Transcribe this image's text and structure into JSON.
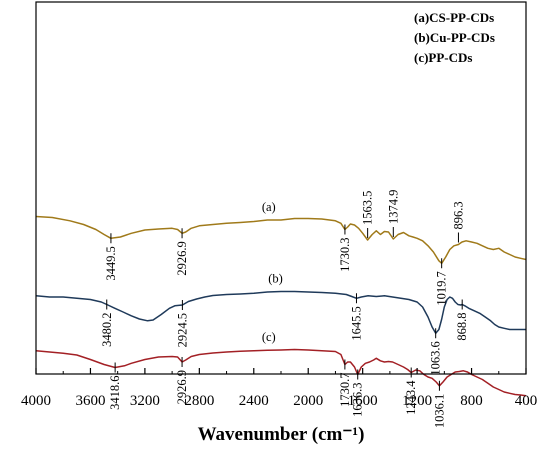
{
  "chart_data": {
    "type": "line",
    "xlabel": "Wavenumber (cm⁻¹)",
    "xlim": [
      4000,
      400
    ],
    "x_ticks": [
      "4000",
      "3600",
      "3200",
      "2800",
      "2400",
      "2000",
      "1600",
      "1200",
      "800",
      "400"
    ],
    "legend": [
      "(a)CS-PP-CDs",
      "(b)Cu-PP-CDs",
      "(c)PP-CDs"
    ],
    "series": [
      {
        "name": "(a)CS-PP-CDs",
        "label": "(a)",
        "color": "#a07a1a",
        "label_at": 2290,
        "points": [
          [
            4000,
            0.858
          ],
          [
            3880,
            0.862
          ],
          [
            3750,
            0.875
          ],
          [
            3650,
            0.89
          ],
          [
            3560,
            0.91
          ],
          [
            3500,
            0.93
          ],
          [
            3449.5,
            0.945
          ],
          [
            3380,
            0.94
          ],
          [
            3300,
            0.925
          ],
          [
            3200,
            0.912
          ],
          [
            3100,
            0.908
          ],
          [
            3000,
            0.905
          ],
          [
            2960,
            0.91
          ],
          [
            2926.9,
            0.925
          ],
          [
            2900,
            0.92
          ],
          [
            2860,
            0.905
          ],
          [
            2800,
            0.895
          ],
          [
            2700,
            0.89
          ],
          [
            2600,
            0.885
          ],
          [
            2500,
            0.882
          ],
          [
            2400,
            0.878
          ],
          [
            2300,
            0.872
          ],
          [
            2200,
            0.872
          ],
          [
            2100,
            0.866
          ],
          [
            2000,
            0.866
          ],
          [
            1900,
            0.868
          ],
          [
            1800,
            0.875
          ],
          [
            1760,
            0.885
          ],
          [
            1730.3,
            0.91
          ],
          [
            1710,
            0.9
          ],
          [
            1690,
            0.888
          ],
          [
            1660,
            0.892
          ],
          [
            1630,
            0.905
          ],
          [
            1600,
            0.925
          ],
          [
            1563.5,
            0.952
          ],
          [
            1530,
            0.93
          ],
          [
            1500,
            0.915
          ],
          [
            1470,
            0.93
          ],
          [
            1440,
            0.918
          ],
          [
            1410,
            0.92
          ],
          [
            1374.9,
            0.948
          ],
          [
            1340,
            0.93
          ],
          [
            1300,
            0.922
          ],
          [
            1260,
            0.935
          ],
          [
            1230,
            0.94
          ],
          [
            1200,
            0.945
          ],
          [
            1160,
            0.955
          ],
          [
            1120,
            0.975
          ],
          [
            1080,
            1.0
          ],
          [
            1040,
            1.035
          ],
          [
            1019.7,
            1.045
          ],
          [
            990,
            1.02
          ],
          [
            960,
            0.99
          ],
          [
            930,
            0.975
          ],
          [
            896.3,
            0.97
          ],
          [
            870,
            0.96
          ],
          [
            840,
            0.955
          ],
          [
            800,
            0.96
          ],
          [
            760,
            0.965
          ],
          [
            720,
            0.975
          ],
          [
            680,
            0.985
          ],
          [
            640,
            0.99
          ],
          [
            600,
            0.985
          ],
          [
            560,
            1.0
          ],
          [
            520,
            1.01
          ],
          [
            480,
            1.02
          ],
          [
            440,
            1.025
          ],
          [
            400,
            1.03
          ]
        ]
      },
      {
        "name": "(b)Cu-PP-CDs",
        "label": "(b)",
        "color": "#1f3a5a",
        "label_at": 2240,
        "points": [
          [
            4000,
            1.175
          ],
          [
            3900,
            1.18
          ],
          [
            3800,
            1.18
          ],
          [
            3700,
            1.185
          ],
          [
            3600,
            1.19
          ],
          [
            3520,
            1.2
          ],
          [
            3480.2,
            1.21
          ],
          [
            3420,
            1.225
          ],
          [
            3360,
            1.24
          ],
          [
            3300,
            1.255
          ],
          [
            3240,
            1.268
          ],
          [
            3180,
            1.275
          ],
          [
            3140,
            1.272
          ],
          [
            3080,
            1.25
          ],
          [
            3020,
            1.225
          ],
          [
            2980,
            1.215
          ],
          [
            2924.5,
            1.212
          ],
          [
            2880,
            1.198
          ],
          [
            2820,
            1.188
          ],
          [
            2760,
            1.18
          ],
          [
            2700,
            1.174
          ],
          [
            2600,
            1.17
          ],
          [
            2500,
            1.168
          ],
          [
            2400,
            1.165
          ],
          [
            2300,
            1.16
          ],
          [
            2200,
            1.158
          ],
          [
            2100,
            1.158
          ],
          [
            2000,
            1.16
          ],
          [
            1900,
            1.162
          ],
          [
            1800,
            1.165
          ],
          [
            1720,
            1.17
          ],
          [
            1680,
            1.178
          ],
          [
            1645.5,
            1.185
          ],
          [
            1610,
            1.18
          ],
          [
            1560,
            1.175
          ],
          [
            1500,
            1.178
          ],
          [
            1440,
            1.175
          ],
          [
            1380,
            1.18
          ],
          [
            1320,
            1.185
          ],
          [
            1260,
            1.19
          ],
          [
            1200,
            1.2
          ],
          [
            1160,
            1.22
          ],
          [
            1120,
            1.26
          ],
          [
            1090,
            1.3
          ],
          [
            1063.6,
            1.325
          ],
          [
            1040,
            1.31
          ],
          [
            1020,
            1.27
          ],
          [
            1000,
            1.22
          ],
          [
            980,
            1.19
          ],
          [
            960,
            1.18
          ],
          [
            940,
            1.185
          ],
          [
            920,
            1.2
          ],
          [
            900,
            1.21
          ],
          [
            880,
            1.212
          ],
          [
            868.8,
            1.21
          ],
          [
            850,
            1.215
          ],
          [
            820,
            1.225
          ],
          [
            780,
            1.235
          ],
          [
            740,
            1.245
          ],
          [
            700,
            1.26
          ],
          [
            660,
            1.275
          ],
          [
            630,
            1.29
          ],
          [
            600,
            1.3
          ],
          [
            560,
            1.305
          ],
          [
            520,
            1.31
          ],
          [
            480,
            1.31
          ],
          [
            440,
            1.31
          ],
          [
            400,
            1.31
          ]
        ]
      },
      {
        "name": "(c)PP-CDs",
        "label": "(c)",
        "color": "#a32025",
        "label_at": 2290,
        "points": [
          [
            4000,
            1.395
          ],
          [
            3900,
            1.4
          ],
          [
            3800,
            1.405
          ],
          [
            3700,
            1.412
          ],
          [
            3600,
            1.43
          ],
          [
            3500,
            1.45
          ],
          [
            3418.6,
            1.462
          ],
          [
            3350,
            1.455
          ],
          [
            3300,
            1.445
          ],
          [
            3200,
            1.43
          ],
          [
            3100,
            1.42
          ],
          [
            3000,
            1.418
          ],
          [
            2960,
            1.42
          ],
          [
            2926.9,
            1.44
          ],
          [
            2900,
            1.432
          ],
          [
            2860,
            1.418
          ],
          [
            2800,
            1.41
          ],
          [
            2700,
            1.404
          ],
          [
            2600,
            1.4
          ],
          [
            2500,
            1.397
          ],
          [
            2400,
            1.395
          ],
          [
            2300,
            1.393
          ],
          [
            2200,
            1.392
          ],
          [
            2100,
            1.39
          ],
          [
            2000,
            1.392
          ],
          [
            1900,
            1.395
          ],
          [
            1800,
            1.398
          ],
          [
            1760,
            1.41
          ],
          [
            1730.7,
            1.45
          ],
          [
            1710,
            1.44
          ],
          [
            1690,
            1.44
          ],
          [
            1660,
            1.46
          ],
          [
            1636.3,
            1.49
          ],
          [
            1610,
            1.46
          ],
          [
            1580,
            1.445
          ],
          [
            1550,
            1.44
          ],
          [
            1520,
            1.432
          ],
          [
            1500,
            1.425
          ],
          [
            1470,
            1.435
          ],
          [
            1440,
            1.44
          ],
          [
            1410,
            1.438
          ],
          [
            1380,
            1.44
          ],
          [
            1340,
            1.45
          ],
          [
            1300,
            1.46
          ],
          [
            1270,
            1.47
          ],
          [
            1243.4,
            1.482
          ],
          [
            1210,
            1.472
          ],
          [
            1180,
            1.475
          ],
          [
            1150,
            1.49
          ],
          [
            1120,
            1.5
          ],
          [
            1090,
            1.505
          ],
          [
            1060,
            1.52
          ],
          [
            1036.1,
            1.535
          ],
          [
            1010,
            1.52
          ],
          [
            980,
            1.5
          ],
          [
            950,
            1.49
          ],
          [
            920,
            1.48
          ],
          [
            890,
            1.478
          ],
          [
            860,
            1.475
          ],
          [
            830,
            1.48
          ],
          [
            800,
            1.49
          ],
          [
            760,
            1.5
          ],
          [
            720,
            1.51
          ],
          [
            680,
            1.525
          ],
          [
            640,
            1.54
          ],
          [
            600,
            1.55
          ],
          [
            560,
            1.56
          ],
          [
            520,
            1.565
          ],
          [
            480,
            1.57
          ],
          [
            440,
            1.572
          ],
          [
            400,
            1.575
          ]
        ]
      }
    ],
    "annotations": [
      {
        "text": "3449.5",
        "x": 3449.5,
        "series": 0,
        "dir": "down"
      },
      {
        "text": "2926.9",
        "x": 2926.9,
        "series": 0,
        "dir": "down"
      },
      {
        "text": "1730.3",
        "x": 1730.3,
        "series": 0,
        "dir": "down"
      },
      {
        "text": "1563.5",
        "x": 1563.5,
        "series": 0,
        "dir": "up"
      },
      {
        "text": "1374.9",
        "x": 1374.9,
        "series": 0,
        "dir": "up"
      },
      {
        "text": "1019.7",
        "x": 1019.7,
        "series": 0,
        "dir": "down"
      },
      {
        "text": "896.3",
        "x": 896.3,
        "series": 0,
        "dir": "up"
      },
      {
        "text": "3480.2",
        "x": 3480.2,
        "series": 1,
        "dir": "down"
      },
      {
        "text": "2924.5",
        "x": 2924.5,
        "series": 1,
        "dir": "down"
      },
      {
        "text": "1645.5",
        "x": 1645.5,
        "series": 1,
        "dir": "down"
      },
      {
        "text": "1063.6",
        "x": 1063.6,
        "series": 1,
        "dir": "down"
      },
      {
        "text": "868.8",
        "x": 868.8,
        "series": 1,
        "dir": "down"
      },
      {
        "text": "3418.6",
        "x": 3418.6,
        "series": 2,
        "dir": "down"
      },
      {
        "text": "2926.9",
        "x": 2926.9,
        "series": 2,
        "dir": "down"
      },
      {
        "text": "1730.7",
        "x": 1730.7,
        "series": 2,
        "dir": "down"
      },
      {
        "text": "1636.3",
        "x": 1636.3,
        "series": 2,
        "dir": "down"
      },
      {
        "text": "1243.4",
        "x": 1243.4,
        "series": 2,
        "dir": "down"
      },
      {
        "text": "1036.1",
        "x": 1036.1,
        "series": 2,
        "dir": "down"
      }
    ]
  }
}
